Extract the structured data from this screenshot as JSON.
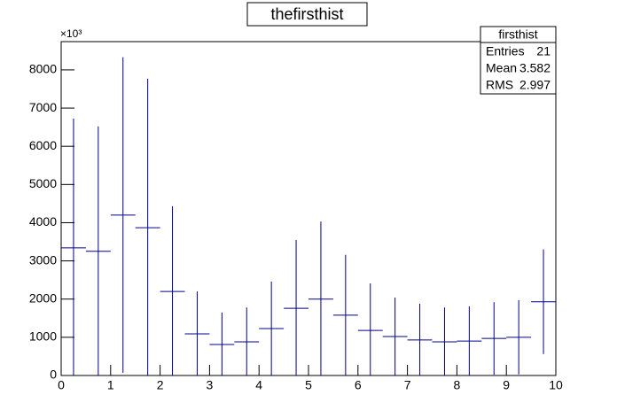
{
  "chart_data": {
    "type": "histogram",
    "title": "thefirsthist",
    "y_multiplier": "×10³",
    "bins": [
      0,
      0.5,
      1,
      1.5,
      2,
      2.5,
      3,
      3.5,
      4,
      4.5,
      5,
      5.5,
      6,
      6.5,
      7,
      7.5,
      8,
      8.5,
      9,
      9.5,
      10
    ],
    "values": [
      3340,
      3250,
      4200,
      3870,
      2200,
      1090,
      810,
      880,
      1230,
      1760,
      2000,
      1580,
      1180,
      1020,
      930,
      880,
      900,
      970,
      1000,
      1930
    ],
    "errors": [
      3385,
      3270,
      4130,
      3900,
      2230,
      1110,
      840,
      900,
      1230,
      1790,
      2030,
      1580,
      1230,
      1020,
      950,
      900,
      910,
      950,
      970,
      1370
    ],
    "color": "#00008b",
    "xlim": [
      0,
      10
    ],
    "xticks": [
      0,
      1,
      2,
      3,
      4,
      5,
      6,
      7,
      8,
      9,
      10
    ],
    "ylim": [
      0,
      8740
    ],
    "yticks": [
      0,
      1000,
      2000,
      3000,
      4000,
      5000,
      6000,
      7000,
      8000
    ],
    "stats": {
      "name": "firsthist",
      "rows": [
        [
          "Entries",
          "21"
        ],
        [
          "Mean",
          "3.582"
        ],
        [
          "RMS",
          "2.997"
        ]
      ]
    }
  }
}
